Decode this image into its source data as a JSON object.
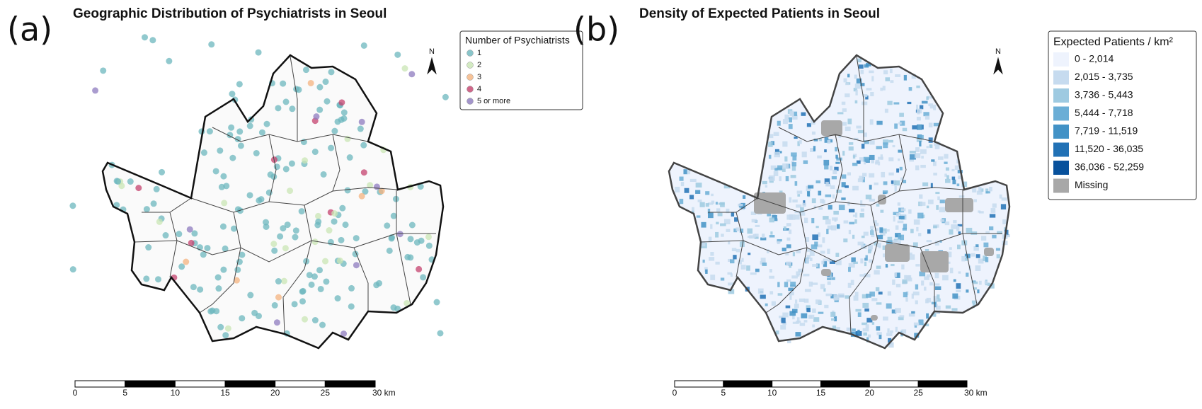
{
  "panels": [
    {
      "label": "(a)",
      "title": "Geographic Distribution of Psychiatrists in Seoul",
      "legend": {
        "title": "Number of Psychiatrists",
        "items": [
          {
            "label": "1",
            "color": "#6cb7bd"
          },
          {
            "label": "2",
            "color": "#c9e6b4"
          },
          {
            "label": "3",
            "color": "#f4b37f"
          },
          {
            "label": "4",
            "color": "#c4426e"
          },
          {
            "label": "5 or more",
            "color": "#8d7bbf"
          }
        ]
      },
      "north": "N",
      "scale_bar": [
        "0",
        "5",
        "10",
        "15",
        "20",
        "25",
        "30 km"
      ]
    },
    {
      "label": "(b)",
      "title": "Density of Expected Patients in Seoul",
      "legend": {
        "title": "Expected Patients / km²",
        "items": [
          {
            "label": "0 - 2,014",
            "color": "#eef3fd"
          },
          {
            "label": "2,015 - 3,735",
            "color": "#c6dbef"
          },
          {
            "label": "3,736 - 5,443",
            "color": "#9ecae1"
          },
          {
            "label": "5,444 - 7,718",
            "color": "#6baed6"
          },
          {
            "label": "7,719 - 11,519",
            "color": "#4292c6"
          },
          {
            "label": "11,520 - 36,035",
            "color": "#2171b5"
          },
          {
            "label": "36,036 - 52,259",
            "color": "#08519c"
          },
          {
            "label": "Missing",
            "color": "#a8a8a8"
          }
        ]
      },
      "north": "N",
      "scale_bar": [
        "0",
        "5",
        "10",
        "15",
        "20",
        "25",
        "30 km"
      ]
    }
  ]
}
